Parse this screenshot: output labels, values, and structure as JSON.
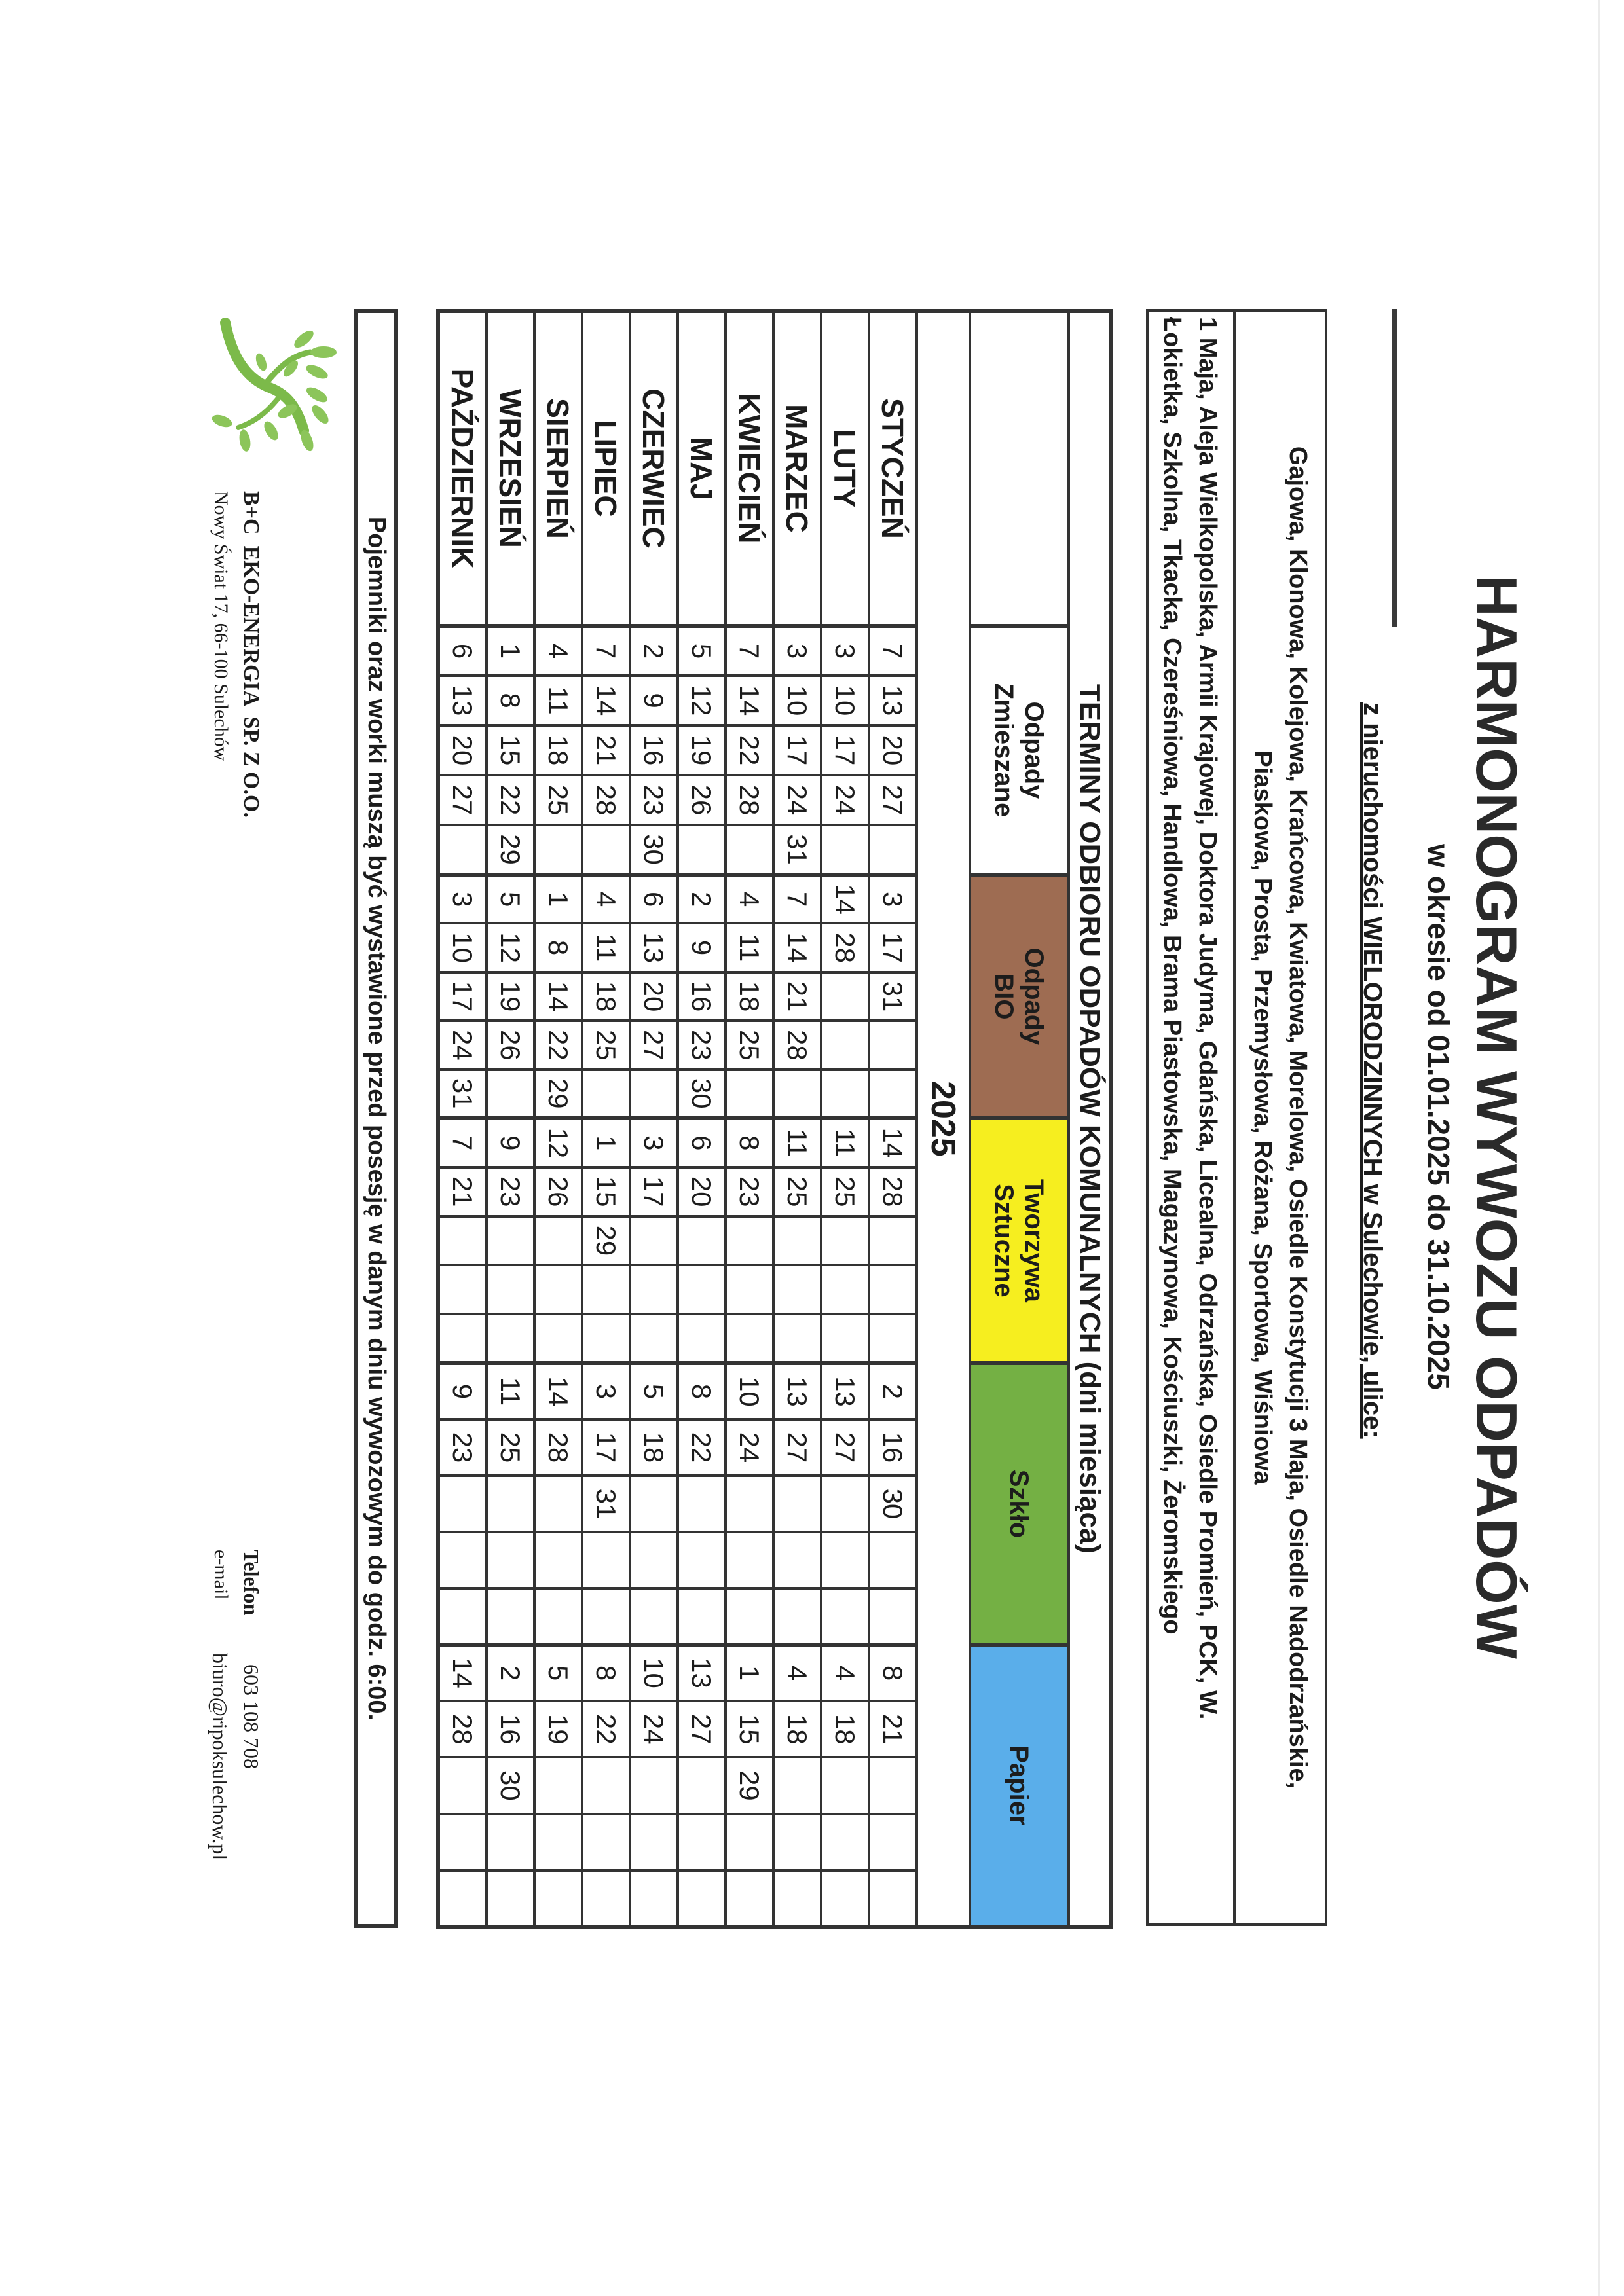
{
  "header": {
    "title": "HARMONOGRAM WYWOZU ODPADÓW",
    "subtitle": "w okresie od 01.01.2025 do 31.10.2025",
    "scope": "z nieruchomości WIELORODZINNYCH w Sulechowie, ulice:"
  },
  "streets": {
    "group1": [
      "Gajowa, Klonowa, Kolejowa, Krańcowa, Kwiatowa, Morelowa, Osiedle Konstytucji 3 Maja, Osiedle Nadodrzańskie,",
      "Piaskowa, Prosta, Przemysłowa, Różana, Sportowa, Wiśniowa"
    ],
    "group2": [
      "1 Maja, Aleja Wielkopolska, Armii Krajowej, Doktora Judyma, Gdańska, Licealna, Odrzańska, Osiedle Promień, PCK, W.",
      "Łokietka, Szkolna, Tkacka, Czereśniowa, Handlowa,  Brama Piastowska, Magazynowa, Kościuszki, Żeromskiego"
    ]
  },
  "schedule": {
    "title": "TERMINY ODBIORU ODPADÓW KOMUNALNYCH (dni miesiąca)",
    "year": "2025",
    "categories": [
      {
        "key": "mixed",
        "label_lines": [
          "Odpady",
          "Zmieszane"
        ],
        "color": "#ffffff"
      },
      {
        "key": "bio",
        "label_lines": [
          "Odpady",
          "BIO"
        ],
        "color": "#9e6c52"
      },
      {
        "key": "plastic",
        "label_lines": [
          "Tworzywa",
          "Sztuczne"
        ],
        "color": "#f6ee1f"
      },
      {
        "key": "glass",
        "label_lines": [
          "Szkło"
        ],
        "color": "#74b044"
      },
      {
        "key": "paper",
        "label_lines": [
          "Papier"
        ],
        "color": "#5aaeea"
      }
    ],
    "months": [
      {
        "name": "STYCZEŃ",
        "mixed": [
          "7",
          "13",
          "20",
          "27",
          ""
        ],
        "bio": [
          "3",
          "17",
          "31",
          "",
          ""
        ],
        "plastic": [
          "14",
          "28",
          "",
          "",
          ""
        ],
        "glass": [
          "2",
          "16",
          "30",
          "",
          ""
        ],
        "paper": [
          "8",
          "21",
          "",
          "",
          ""
        ]
      },
      {
        "name": "LUTY",
        "mixed": [
          "3",
          "10",
          "17",
          "24",
          ""
        ],
        "bio": [
          "14",
          "28",
          "",
          "",
          ""
        ],
        "plastic": [
          "11",
          "25",
          "",
          "",
          ""
        ],
        "glass": [
          "13",
          "27",
          "",
          "",
          ""
        ],
        "paper": [
          "4",
          "18",
          "",
          "",
          ""
        ]
      },
      {
        "name": "MARZEC",
        "mixed": [
          "3",
          "10",
          "17",
          "24",
          "31"
        ],
        "bio": [
          "7",
          "14",
          "21",
          "28",
          ""
        ],
        "plastic": [
          "11",
          "25",
          "",
          "",
          ""
        ],
        "glass": [
          "13",
          "27",
          "",
          "",
          ""
        ],
        "paper": [
          "4",
          "18",
          "",
          "",
          ""
        ]
      },
      {
        "name": "KWIECIEŃ",
        "mixed": [
          "7",
          "14",
          "22",
          "28",
          ""
        ],
        "bio": [
          "4",
          "11",
          "18",
          "25",
          ""
        ],
        "plastic": [
          "8",
          "23",
          "",
          "",
          ""
        ],
        "glass": [
          "10",
          "24",
          "",
          "",
          ""
        ],
        "paper": [
          "1",
          "15",
          "29",
          "",
          ""
        ]
      },
      {
        "name": "MAJ",
        "mixed": [
          "5",
          "12",
          "19",
          "26",
          ""
        ],
        "bio": [
          "2",
          "9",
          "16",
          "23",
          "30"
        ],
        "plastic": [
          "6",
          "20",
          "",
          "",
          ""
        ],
        "glass": [
          "8",
          "22",
          "",
          "",
          ""
        ],
        "paper": [
          "13",
          "27",
          "",
          "",
          ""
        ]
      },
      {
        "name": "CZERWIEC",
        "mixed": [
          "2",
          "9",
          "16",
          "23",
          "30"
        ],
        "bio": [
          "6",
          "13",
          "20",
          "27",
          ""
        ],
        "plastic": [
          "3",
          "17",
          "",
          "",
          ""
        ],
        "glass": [
          "5",
          "18",
          "",
          "",
          ""
        ],
        "paper": [
          "10",
          "24",
          "",
          "",
          ""
        ]
      },
      {
        "name": "LIPIEC",
        "mixed": [
          "7",
          "14",
          "21",
          "28",
          ""
        ],
        "bio": [
          "4",
          "11",
          "18",
          "25",
          ""
        ],
        "plastic": [
          "1",
          "15",
          "29",
          "",
          ""
        ],
        "glass": [
          "3",
          "17",
          "31",
          "",
          ""
        ],
        "paper": [
          "8",
          "22",
          "",
          "",
          ""
        ]
      },
      {
        "name": "SIERPIEŃ",
        "mixed": [
          "4",
          "11",
          "18",
          "25",
          ""
        ],
        "bio": [
          "1",
          "8",
          "14",
          "22",
          "29"
        ],
        "plastic": [
          "12",
          "26",
          "",
          "",
          ""
        ],
        "glass": [
          "14",
          "28",
          "",
          "",
          ""
        ],
        "paper": [
          "5",
          "19",
          "",
          "",
          ""
        ]
      },
      {
        "name": "WRZESIEŃ",
        "mixed": [
          "1",
          "8",
          "15",
          "22",
          "29"
        ],
        "bio": [
          "5",
          "12",
          "19",
          "26",
          ""
        ],
        "plastic": [
          "9",
          "23",
          "",
          "",
          ""
        ],
        "glass": [
          "11",
          "25",
          "",
          "",
          ""
        ],
        "paper": [
          "2",
          "16",
          "30",
          "",
          ""
        ]
      },
      {
        "name": "PAŹDZIERNIK",
        "mixed": [
          "6",
          "13",
          "20",
          "27",
          ""
        ],
        "bio": [
          "3",
          "10",
          "17",
          "24",
          "31"
        ],
        "plastic": [
          "7",
          "21",
          "",
          "",
          ""
        ],
        "glass": [
          "9",
          "23",
          "",
          "",
          ""
        ],
        "paper": [
          "14",
          "28",
          "",
          "",
          ""
        ]
      }
    ]
  },
  "notice": "Pojemniki oraz worki muszą być wystawione przed posesję w danym dniu wywozowym do godz. 6:00.",
  "company": {
    "name": "B+C  EKO-ENERGIA  SP. Z O.O.",
    "address": "Nowy Świat 17, 66-100 Sulechów",
    "phone_label": "Telefon",
    "phone": "603 108 708",
    "email_label": "e-mail",
    "email": "biuro@ripoksulechow.pl",
    "logo_icon": "green-tree-icon",
    "logo_color": "#7cba4a"
  }
}
